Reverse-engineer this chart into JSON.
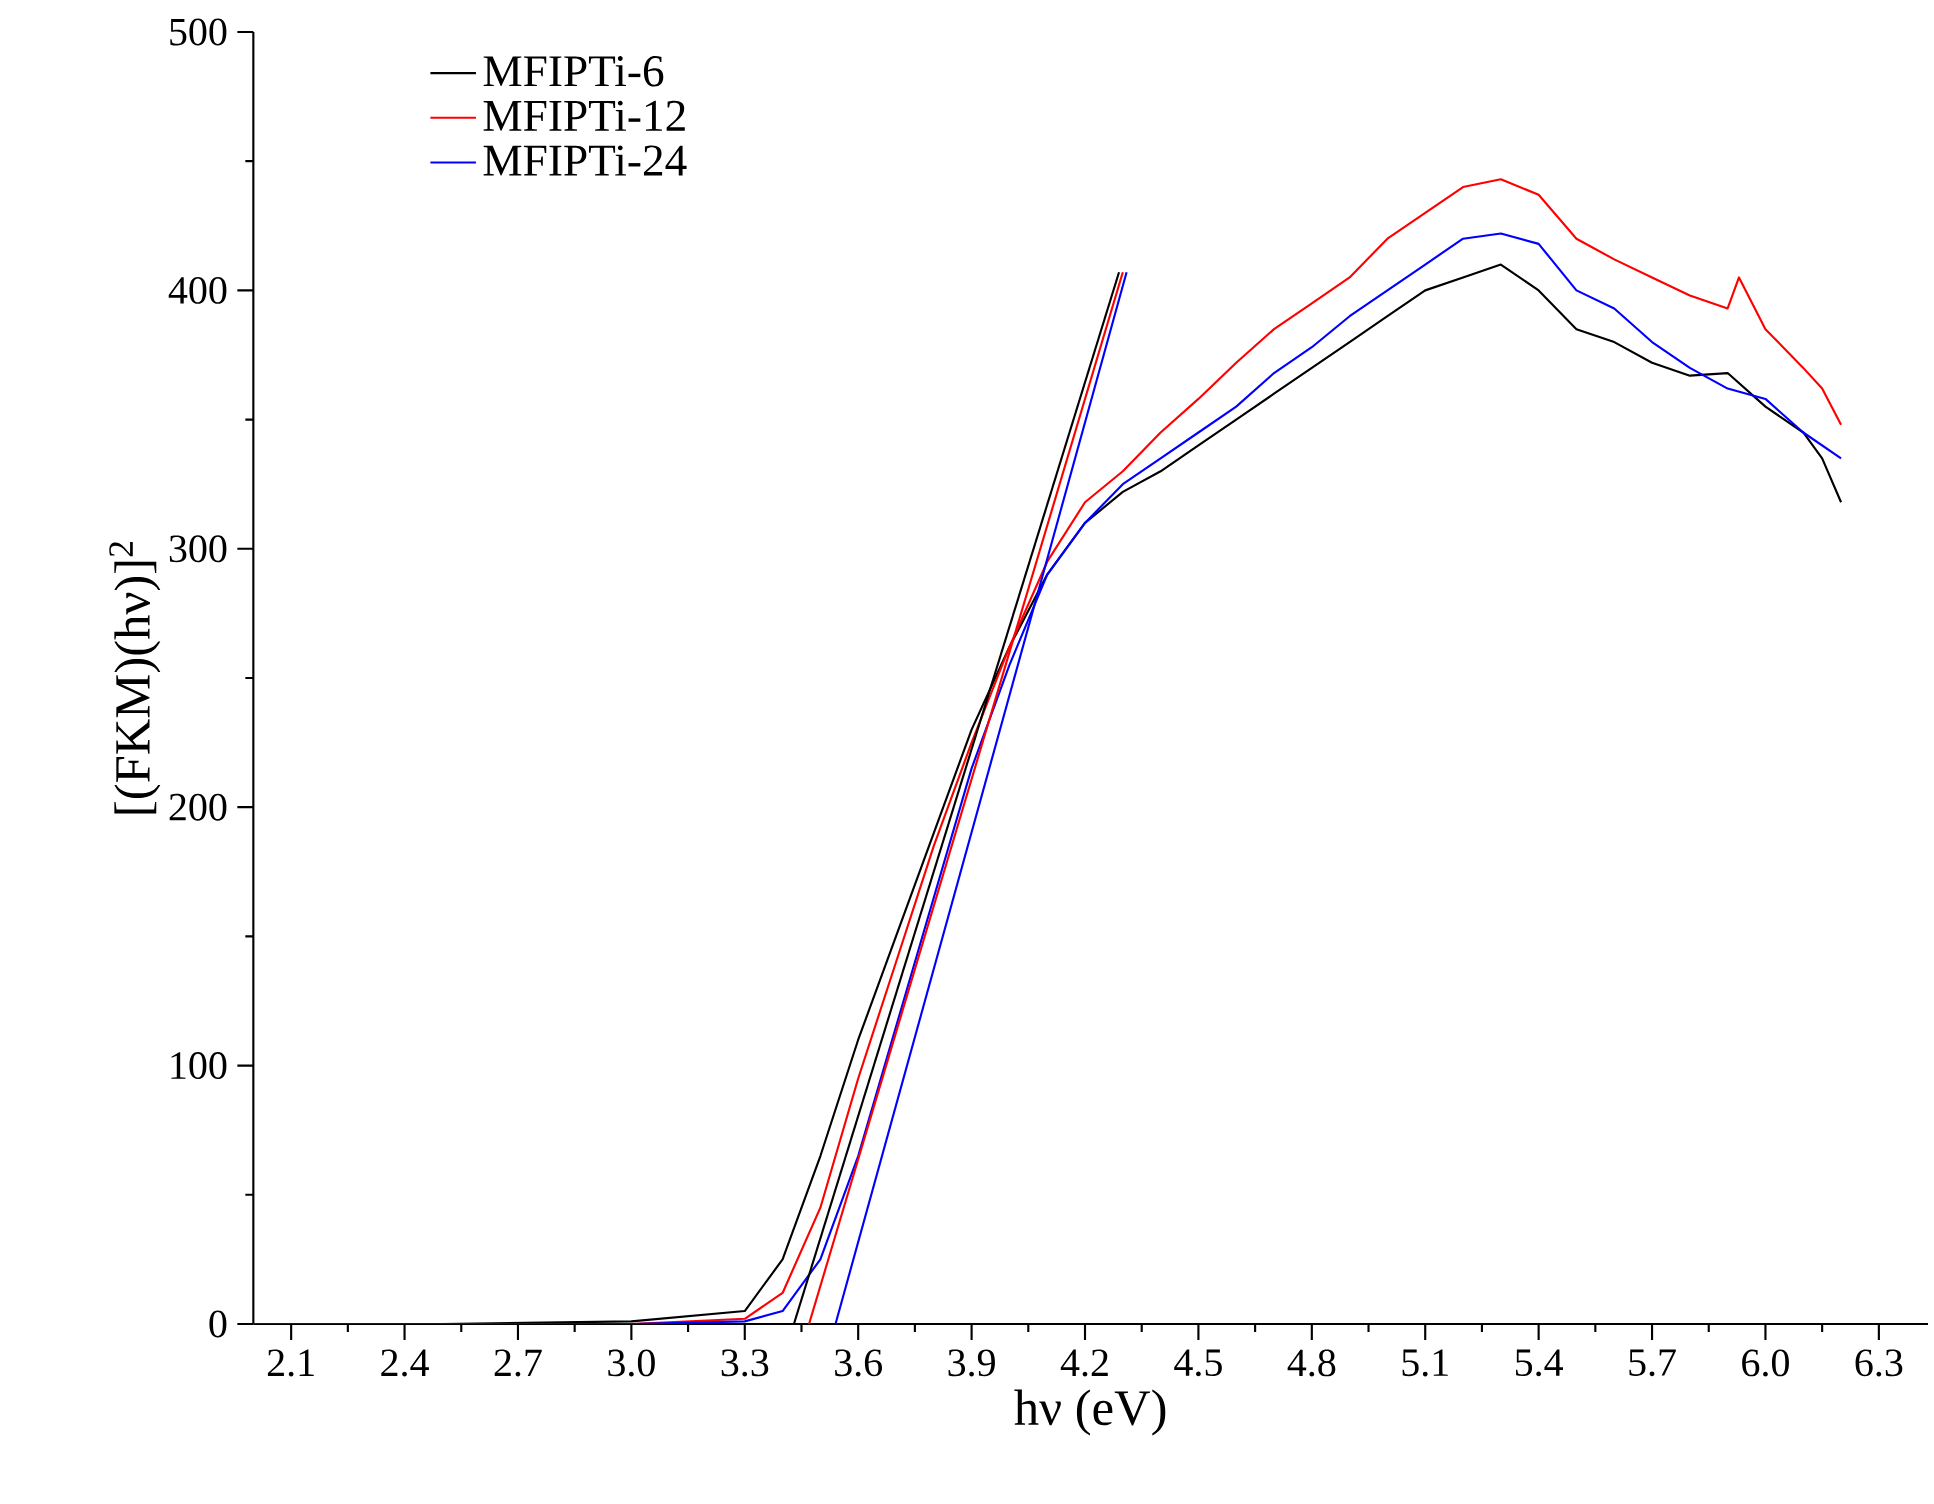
{
  "chart_data": {
    "type": "line",
    "xlabel": "hν (eV)",
    "ylabel": "[(FKM)(hν)]$^{2}$",
    "xlim": [
      2.0,
      6.43
    ],
    "ylim": [
      0,
      500
    ],
    "xticks": [
      2.1,
      2.4,
      2.7,
      {
        "value": 3,
        "label": "3.0"
      },
      3.3,
      3.6,
      3.9,
      4.2,
      4.5,
      4.8,
      5.1,
      5.4,
      5.7,
      {
        "value": 6,
        "label": "6.0"
      },
      6.3
    ],
    "yticks": [
      0,
      100,
      200,
      300,
      400,
      500
    ],
    "grid": false,
    "legend": "top left",
    "series": [
      {
        "name": "MFIPTi-6",
        "color": "#000000",
        "x": [
          2.0,
          2.5,
          3.0,
          3.3,
          3.4,
          3.5,
          3.6,
          3.7,
          3.8,
          3.9,
          4.0,
          4.1,
          4.2,
          4.3,
          4.4,
          4.5,
          4.6,
          4.7,
          4.8,
          4.9,
          5.0,
          5.1,
          5.2,
          5.3,
          5.4,
          5.5,
          5.6,
          5.7,
          5.8,
          5.9,
          6.0,
          6.1,
          6.15,
          6.2
        ],
        "values": [
          0,
          0,
          1,
          5,
          25,
          65,
          110,
          150,
          190,
          230,
          262,
          290,
          310,
          322,
          330,
          340,
          350,
          360,
          370,
          380,
          390,
          400,
          405,
          410,
          400,
          385,
          380,
          372,
          367,
          368,
          355,
          345,
          335,
          318
        ]
      },
      {
        "name": "MFIPTi-12",
        "color": "#ff0000",
        "x": [
          2.0,
          2.5,
          3.0,
          3.3,
          3.4,
          3.5,
          3.6,
          3.7,
          3.8,
          3.9,
          4.0,
          4.1,
          4.2,
          4.3,
          4.4,
          4.5,
          4.6,
          4.7,
          4.8,
          4.9,
          5.0,
          5.1,
          5.2,
          5.3,
          5.4,
          5.5,
          5.6,
          5.7,
          5.8,
          5.9,
          5.93,
          6.0,
          6.1,
          6.15,
          6.2
        ],
        "values": [
          0,
          0,
          0,
          2,
          12,
          45,
          95,
          140,
          185,
          225,
          262,
          295,
          318,
          330,
          345,
          358,
          372,
          385,
          395,
          405,
          420,
          430,
          440,
          443,
          437,
          420,
          412,
          405,
          398,
          393,
          405,
          385,
          370,
          362,
          348
        ]
      },
      {
        "name": "MFIPTi-24",
        "color": "#0000ff",
        "x": [
          2.0,
          2.5,
          3.0,
          3.3,
          3.4,
          3.5,
          3.6,
          3.7,
          3.8,
          3.9,
          4.0,
          4.1,
          4.2,
          4.3,
          4.4,
          4.5,
          4.6,
          4.7,
          4.8,
          4.9,
          5.0,
          5.1,
          5.2,
          5.3,
          5.4,
          5.5,
          5.6,
          5.7,
          5.8,
          5.9,
          6.0,
          6.1,
          6.2
        ],
        "values": [
          0,
          0,
          0,
          1,
          5,
          25,
          65,
          115,
          165,
          215,
          255,
          290,
          310,
          325,
          335,
          345,
          355,
          368,
          378,
          390,
          400,
          410,
          420,
          422,
          418,
          400,
          393,
          380,
          370,
          362,
          358,
          345,
          335
        ]
      },
      {
        "color": "#000000",
        "x": [
          3.43,
          4.29
        ],
        "values": [
          0,
          407
        ]
      },
      {
        "color": "#ff0000",
        "x": [
          3.47,
          4.3
        ],
        "values": [
          0,
          407
        ]
      },
      {
        "color": "#0000ff",
        "x": [
          3.54,
          4.31
        ],
        "values": [
          0,
          407
        ]
      }
    ]
  }
}
